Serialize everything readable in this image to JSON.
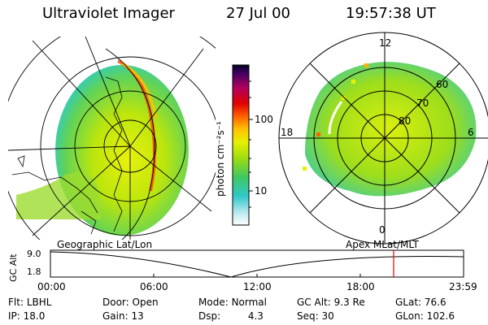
{
  "header": {
    "instrument": "Ultraviolet Imager",
    "date": "27 Jul 00",
    "time": "19:57:38 UT"
  },
  "colorbar": {
    "unit_label": "photon cm⁻²s⁻¹",
    "tick_100": "100",
    "tick_10": "10"
  },
  "polar_plot": {
    "lat_labels": [
      "60",
      "70",
      "80"
    ],
    "mlt_labels": [
      "12",
      "18",
      "6",
      "0"
    ]
  },
  "panel_captions": {
    "left": "Geographic Lat/Lon",
    "right": "Apex MLat/MLT"
  },
  "altitude_plot": {
    "axis_label": "GC Alt",
    "y_ticks": [
      "9.0",
      "1.8"
    ],
    "x_ticks": [
      "00:00",
      "06:00",
      "12:00",
      "18:00",
      "23:59"
    ]
  },
  "status": {
    "flt_label": "Flt:",
    "flt_value": "LBHL",
    "ip_label": "IP:",
    "ip_value": "18.0",
    "door_label": "Door:",
    "door_value": "Open",
    "gain_label": "Gain:",
    "gain_value": "13",
    "mode_label": "Mode:",
    "mode_value": "Normal",
    "dsp_label": "Dsp:",
    "dsp_value": "4.3",
    "gcalt_label": "GC Alt:",
    "gcalt_value": "9.3 Re",
    "seq_label": "Seq:",
    "seq_value": "30",
    "glat_label": "GLat:",
    "glat_value": "76.6",
    "glon_label": "GLon:",
    "glon_value": "102.6"
  },
  "colors": {
    "marker_line": "#e00000"
  }
}
